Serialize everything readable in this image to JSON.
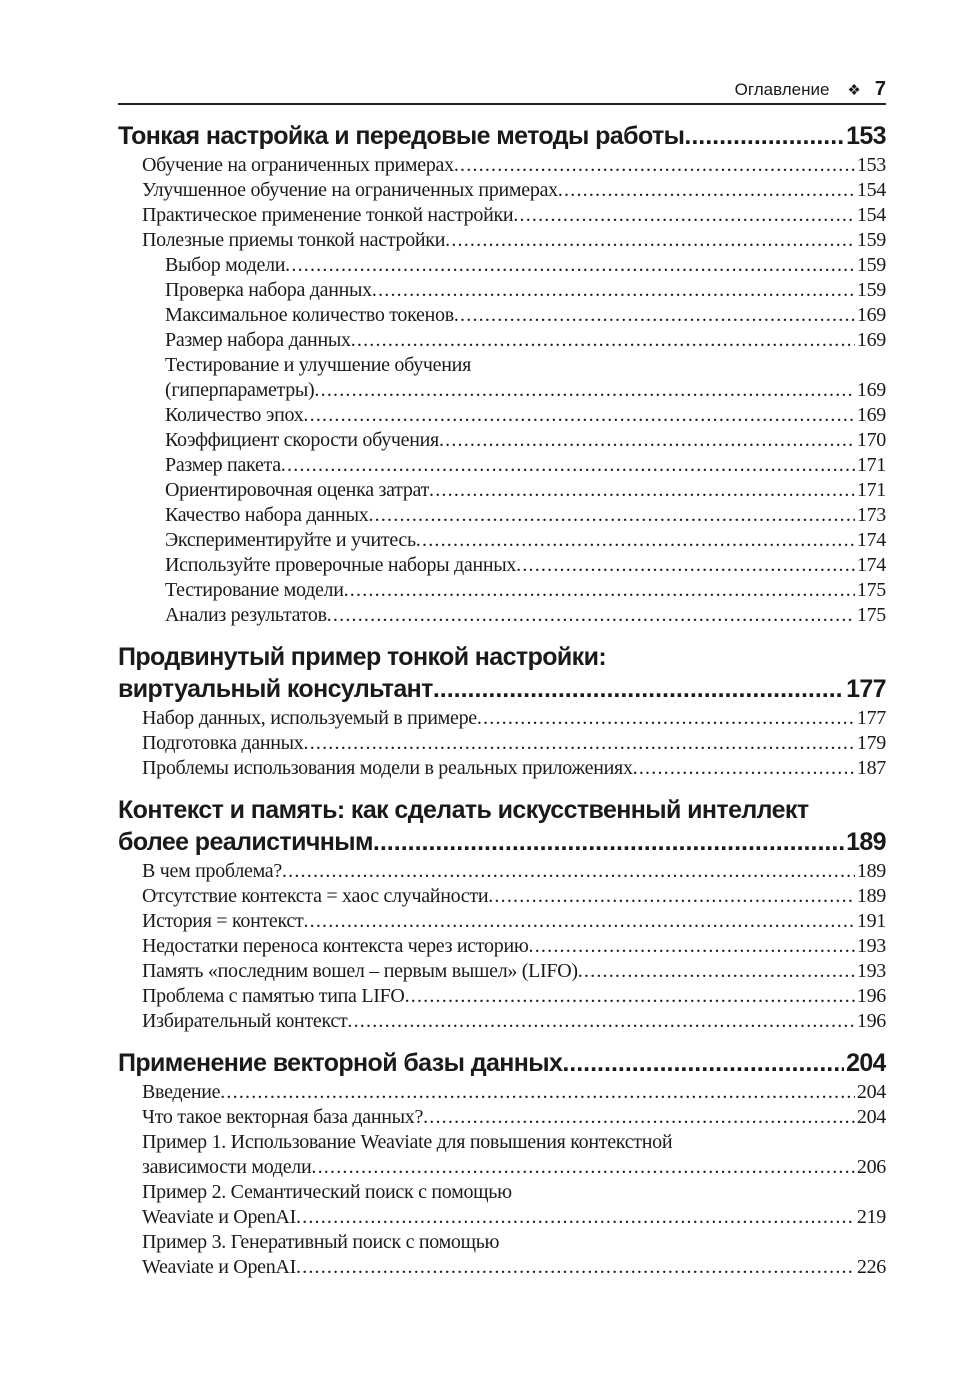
{
  "header": {
    "section": "Оглавление",
    "ornament": "❖",
    "page_number": "7"
  },
  "chapters": [
    {
      "title_lines": [
        "Тонкая настройка и передовые методы работы"
      ],
      "page": "153",
      "entries": [
        {
          "level": 1,
          "lines": [
            "Обучение на ограниченных примерах"
          ],
          "page": "153"
        },
        {
          "level": 1,
          "lines": [
            "Улучшенное обучение на ограниченных примерах"
          ],
          "page": "154"
        },
        {
          "level": 1,
          "lines": [
            "Практическое применение тонкой настройки"
          ],
          "page": "154"
        },
        {
          "level": 1,
          "lines": [
            "Полезные приемы тонкой настройки"
          ],
          "page": "159"
        },
        {
          "level": 2,
          "lines": [
            "Выбор модели"
          ],
          "page": "159"
        },
        {
          "level": 2,
          "lines": [
            "Проверка набора данных"
          ],
          "page": "159"
        },
        {
          "level": 2,
          "lines": [
            "Максимальное количество токенов"
          ],
          "page": "169"
        },
        {
          "level": 2,
          "lines": [
            "Размер набора данных"
          ],
          "page": "169"
        },
        {
          "level": 2,
          "lines": [
            "Тестирование и улучшение обучения",
            "(гиперпараметры)"
          ],
          "page": "169"
        },
        {
          "level": 2,
          "lines": [
            "Количество эпох"
          ],
          "page": "169"
        },
        {
          "level": 2,
          "lines": [
            "Коэффициент скорости обучения"
          ],
          "page": "170"
        },
        {
          "level": 2,
          "lines": [
            "Размер пакета"
          ],
          "page": "171"
        },
        {
          "level": 2,
          "lines": [
            "Ориентировочная оценка затрат"
          ],
          "page": "171"
        },
        {
          "level": 2,
          "lines": [
            "Качество набора данных"
          ],
          "page": "173"
        },
        {
          "level": 2,
          "lines": [
            "Экспериментируйте и учитесь"
          ],
          "page": "174"
        },
        {
          "level": 2,
          "lines": [
            "Используйте проверочные наборы данных"
          ],
          "page": "174"
        },
        {
          "level": 2,
          "lines": [
            "Тестирование модели"
          ],
          "page": "175"
        },
        {
          "level": 2,
          "lines": [
            "Анализ результатов"
          ],
          "page": "175"
        }
      ]
    },
    {
      "title_lines": [
        "Продвинутый пример тонкой настройки:",
        "виртуальный консультант"
      ],
      "page": "177",
      "entries": [
        {
          "level": 1,
          "lines": [
            "Набор данных, используемый в примере"
          ],
          "page": "177"
        },
        {
          "level": 1,
          "lines": [
            "Подготовка данных"
          ],
          "page": "179"
        },
        {
          "level": 1,
          "lines": [
            "Проблемы использования модели в реальных приложениях"
          ],
          "page": "187"
        }
      ]
    },
    {
      "title_lines": [
        "Контекст и память: как сделать искусственный интеллект",
        "более реалистичным"
      ],
      "page": "189",
      "entries": [
        {
          "level": 1,
          "lines": [
            "В чем проблема?"
          ],
          "page": "189"
        },
        {
          "level": 1,
          "lines": [
            "Отсутствие контекста = хаос случайности"
          ],
          "page": "189"
        },
        {
          "level": 1,
          "lines": [
            "История = контекст"
          ],
          "page": "191"
        },
        {
          "level": 1,
          "lines": [
            "Недостатки переноса контекста через историю"
          ],
          "page": "193"
        },
        {
          "level": 1,
          "lines": [
            "Память «последним вошел – первым вышел» (LIFO)"
          ],
          "page": "193"
        },
        {
          "level": 1,
          "lines": [
            "Проблема с памятью типа LIFO"
          ],
          "page": "196"
        },
        {
          "level": 1,
          "lines": [
            "Избирательный контекст"
          ],
          "page": "196"
        }
      ]
    },
    {
      "title_lines": [
        "Применение векторной базы данных"
      ],
      "page": "204",
      "entries": [
        {
          "level": 1,
          "lines": [
            "Введение"
          ],
          "page": "204"
        },
        {
          "level": 1,
          "lines": [
            "Что такое векторная база данных?"
          ],
          "page": "204"
        },
        {
          "level": 1,
          "lines": [
            "Пример 1. Использование Weaviate для повышения контекстной",
            "зависимости модели"
          ],
          "page": "206"
        },
        {
          "level": 1,
          "lines": [
            "Пример 2. Семантический поиск с помощью",
            "Weaviate и OpenAI"
          ],
          "page": "219"
        },
        {
          "level": 1,
          "lines": [
            "Пример 3. Генеративный поиск с помощью",
            "Weaviate и OpenAI"
          ],
          "page": "226"
        }
      ]
    }
  ]
}
